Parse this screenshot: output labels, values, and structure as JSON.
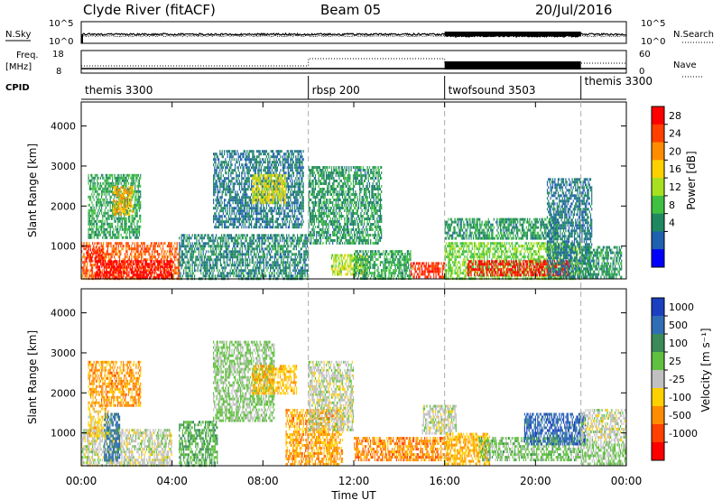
{
  "header": {
    "station": "Clyde River (fitACF)",
    "beam": "Beam 05",
    "date": "20/Jul/2016"
  },
  "status": {
    "nsky_label": "N.Sky",
    "nsky_ticks": [
      "10^5",
      "10^0"
    ],
    "nsearch_label": "N.Search",
    "nsearch_ticks": [
      "10^5",
      "10^0"
    ],
    "freq_label_1": "Freq.",
    "freq_label_2": "[MHz]",
    "freq_ticks": [
      "18",
      "8"
    ],
    "nave_label": "Nave",
    "nave_ticks": [
      "60",
      "0"
    ],
    "cpid_label": "CPID",
    "cpid_segments": [
      {
        "label": "themis 3300",
        "start_h": 0,
        "end_h": 10
      },
      {
        "label": "rbsp 200",
        "start_h": 10,
        "end_h": 16
      },
      {
        "label": "twofsound 3503",
        "start_h": 16,
        "end_h": 22
      },
      {
        "label": "themis 3300",
        "start_h": 22,
        "end_h": 24
      }
    ]
  },
  "power_scale": {
    "label": "Power [dB]",
    "ticks": [
      "28",
      "24",
      "20",
      "16",
      "12",
      "8",
      "4"
    ],
    "colors": [
      "#ff0000",
      "#ff4000",
      "#ff8c00",
      "#ffd000",
      "#a8e020",
      "#40c040",
      "#208860",
      "#2060b0",
      "#0000ff"
    ]
  },
  "velocity_scale": {
    "label": "Velocity [m s⁻¹]",
    "ticks": [
      "1000",
      "500",
      "100",
      "25",
      "-25",
      "-100",
      "-500",
      "-1000"
    ],
    "colors": [
      "#1a3fc0",
      "#2f6eb5",
      "#3a8a5a",
      "#60c040",
      "#c0c0c0",
      "#ffd000",
      "#ff8c00",
      "#ff4000",
      "#ff0000"
    ]
  },
  "axes": {
    "ylabel": "Slant Range [km]",
    "xlabel": "Time UT",
    "xticks": [
      "00:00",
      "04:00",
      "08:00",
      "12:00",
      "16:00",
      "20:00",
      "00:00"
    ],
    "yticks": [
      "1000",
      "2000",
      "3000",
      "4000"
    ]
  },
  "chart_data": [
    {
      "type": "heatmap",
      "name": "power",
      "xlabel": "Time UT",
      "ylabel": "Slant Range [km]",
      "xlim": [
        0,
        24
      ],
      "ylim": [
        180,
        4600
      ],
      "units": "dB",
      "scale_range": [
        0,
        30
      ],
      "regions": [
        {
          "t0": 0.0,
          "t1": 4.3,
          "r0": 200,
          "r1": 1100,
          "v": 24
        },
        {
          "t0": 0.6,
          "t1": 4.0,
          "r0": 200,
          "r1": 650,
          "v": 29
        },
        {
          "t0": 0.2,
          "t1": 1.0,
          "r0": 650,
          "r1": 1000,
          "v": 27
        },
        {
          "t0": 0.3,
          "t1": 2.6,
          "r0": 1200,
          "r1": 2800,
          "v": 10
        },
        {
          "t0": 1.4,
          "t1": 2.3,
          "r0": 1800,
          "r1": 2500,
          "v": 20
        },
        {
          "t0": 4.3,
          "t1": 10.0,
          "r0": 200,
          "r1": 1300,
          "v": 8
        },
        {
          "t0": 5.8,
          "t1": 9.8,
          "r0": 1500,
          "r1": 3400,
          "v": 7
        },
        {
          "t0": 7.5,
          "t1": 9.0,
          "r0": 2100,
          "r1": 2800,
          "v": 17
        },
        {
          "t0": 10.0,
          "t1": 13.2,
          "r0": 1100,
          "r1": 3000,
          "v": 9
        },
        {
          "t0": 11.0,
          "t1": 12.6,
          "r0": 300,
          "r1": 800,
          "v": 15
        },
        {
          "t0": 12.0,
          "t1": 14.5,
          "r0": 200,
          "r1": 900,
          "v": 10
        },
        {
          "t0": 14.5,
          "t1": 16.0,
          "r0": 200,
          "r1": 600,
          "v": 26
        },
        {
          "t0": 16.0,
          "t1": 22.0,
          "r0": 200,
          "r1": 1100,
          "v": 13
        },
        {
          "t0": 16.0,
          "t1": 21.0,
          "r0": 1200,
          "r1": 1700,
          "v": 9
        },
        {
          "t0": 17.0,
          "t1": 21.5,
          "r0": 300,
          "r1": 650,
          "v": 28
        },
        {
          "t0": 20.5,
          "t1": 22.5,
          "r0": 200,
          "r1": 2700,
          "v": 7
        },
        {
          "t0": 22.0,
          "t1": 23.8,
          "r0": 200,
          "r1": 1000,
          "v": 9
        }
      ]
    },
    {
      "type": "heatmap",
      "name": "velocity",
      "xlabel": "Time UT",
      "ylabel": "Slant Range [km]",
      "xlim": [
        0,
        24
      ],
      "ylim": [
        180,
        4600
      ],
      "units": "m s-1",
      "scale_range": [
        -1000,
        1000
      ],
      "regions": [
        {
          "t0": 0.0,
          "t1": 4.0,
          "r0": 200,
          "r1": 1100,
          "v": 0
        },
        {
          "t0": 0.3,
          "t1": 1.2,
          "r0": 900,
          "r1": 1700,
          "v": -200
        },
        {
          "t0": 1.0,
          "t1": 1.7,
          "r0": 300,
          "r1": 1500,
          "v": 600
        },
        {
          "t0": 0.3,
          "t1": 2.6,
          "r0": 1700,
          "r1": 2800,
          "v": -400
        },
        {
          "t0": 4.3,
          "t1": 6.0,
          "r0": 200,
          "r1": 1300,
          "v": 300
        },
        {
          "t0": 5.8,
          "t1": 8.5,
          "r0": 1300,
          "r1": 3300,
          "v": 150
        },
        {
          "t0": 7.5,
          "t1": 9.5,
          "r0": 2000,
          "r1": 2700,
          "v": -300
        },
        {
          "t0": 9.0,
          "t1": 11.5,
          "r0": 200,
          "r1": 1600,
          "v": -400
        },
        {
          "t0": 10.0,
          "t1": 12.0,
          "r0": 1100,
          "r1": 2800,
          "v": 0
        },
        {
          "t0": 12.0,
          "t1": 16.2,
          "r0": 300,
          "r1": 900,
          "v": -450
        },
        {
          "t0": 15.0,
          "t1": 16.5,
          "r0": 1000,
          "r1": 1700,
          "v": 0
        },
        {
          "t0": 16.0,
          "t1": 18.0,
          "r0": 200,
          "r1": 1000,
          "v": -300
        },
        {
          "t0": 17.5,
          "t1": 22.0,
          "r0": 300,
          "r1": 900,
          "v": 200
        },
        {
          "t0": 19.5,
          "t1": 22.2,
          "r0": 700,
          "r1": 1500,
          "v": 700
        },
        {
          "t0": 22.0,
          "t1": 24.0,
          "r0": 200,
          "r1": 800,
          "v": 150
        },
        {
          "t0": 22.0,
          "t1": 24.0,
          "r0": 800,
          "r1": 1600,
          "v": 0
        }
      ]
    }
  ]
}
